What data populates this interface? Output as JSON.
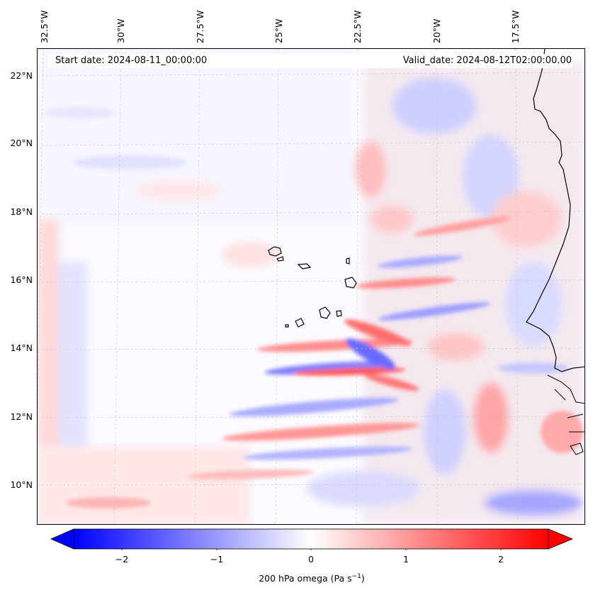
{
  "header": {
    "start_date": "Start date: 2024-08-11_00:00:00",
    "valid_date": "Valid_date: 2024-08-12T02:00:00.00"
  },
  "map": {
    "lon_labels": [
      "32.5°W",
      "30°W",
      "27.5°W",
      "25°W",
      "22.5°W",
      "20°W",
      "17.5°W"
    ],
    "lat_labels": [
      "22°N",
      "20°N",
      "18°N",
      "16°N",
      "14°N",
      "12°N",
      "10°N"
    ],
    "field_colors": {
      "positive": "#ff0000",
      "negative": "#0000ff",
      "zero": "#ffffff"
    }
  },
  "colorbar": {
    "ticks": [
      "−2",
      "−1",
      "0",
      "1",
      "2"
    ],
    "label": "200 hPa omega (Pa s",
    "label_superscript": "−1",
    "label_close": ")",
    "range": [
      -2.5,
      2.5
    ],
    "colormap": "bwr"
  }
}
